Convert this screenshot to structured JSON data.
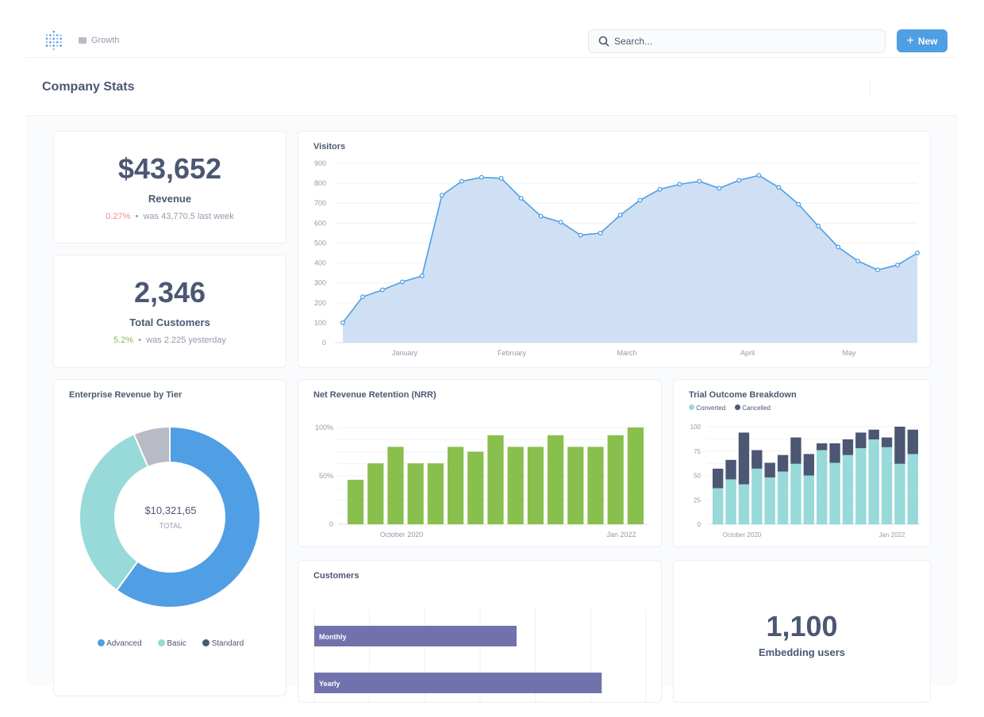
{
  "header": {
    "breadcrumb": "Growth",
    "search_placeholder": "Search...",
    "new_label": "New",
    "page_title": "Company Stats"
  },
  "revenue": {
    "value": "$43,652",
    "label": "Revenue",
    "change": "0.27%",
    "comparison": "was 43,770.5 last week",
    "change_color": "#ef8c8c"
  },
  "customers_total": {
    "value": "2,346",
    "label": "Total Customers",
    "change": "5.2%",
    "comparison": "was 2.225 yesterday",
    "change_color": "#84bb4c"
  },
  "embedding": {
    "value": "1,100",
    "label": "Embedding users"
  },
  "colors": {
    "accent": "#509ee3",
    "green": "#88bf4d",
    "teal": "#98d9d9",
    "navy": "#4c5773",
    "purple": "#7172ad",
    "gray": "#b8bbc3"
  },
  "chart_data": [
    {
      "type": "area",
      "title": "Visitors",
      "ylim": [
        0,
        900
      ],
      "yticks": [
        "0",
        "100",
        "200",
        "300",
        "400",
        "500",
        "600",
        "700",
        "800",
        "900"
      ],
      "xticks": [
        "January",
        "February",
        "March",
        "April",
        "May"
      ],
      "values": [
        100,
        230,
        265,
        305,
        335,
        740,
        810,
        830,
        825,
        725,
        635,
        605,
        540,
        550,
        640,
        715,
        770,
        795,
        810,
        775,
        815,
        840,
        780,
        695,
        585,
        480,
        410,
        365,
        390,
        450
      ]
    },
    {
      "type": "bar",
      "title": "Net Revenue Retention (NRR)",
      "ylim": [
        0,
        100
      ],
      "yticks": [
        "0",
        "50%",
        "100%"
      ],
      "xticks": [
        "October 2020",
        "Jan 2022"
      ],
      "values": [
        46,
        63,
        80,
        63,
        63,
        80,
        75,
        92,
        80,
        80,
        92,
        80,
        80,
        92,
        100
      ]
    },
    {
      "type": "bar",
      "stacked": true,
      "title": "Trial Outcome Breakdown",
      "ylim": [
        0,
        100
      ],
      "yticks": [
        "0",
        "25",
        "50",
        "75",
        "100"
      ],
      "xticks": [
        "October 2020",
        "Jan 2022"
      ],
      "legend": "top-left",
      "series": [
        {
          "name": "Converted",
          "values": [
            37,
            46,
            41,
            57,
            48,
            54,
            62,
            50,
            76,
            63,
            71,
            78,
            87,
            79,
            62,
            72
          ]
        },
        {
          "name": "Cancelled",
          "values": [
            20,
            20,
            53,
            19,
            15,
            17,
            27,
            22,
            7,
            20,
            16,
            16,
            10,
            10,
            38,
            25
          ]
        }
      ]
    },
    {
      "type": "pie",
      "donut": true,
      "title": "Enterprise Revenue by Tier",
      "center_value": "$10,321,65",
      "center_label": "TOTAL",
      "slices": [
        {
          "name": "Advanced",
          "value": 60
        },
        {
          "name": "Basic",
          "value": 33.5
        },
        {
          "name": "Standard",
          "value": 6.5
        }
      ]
    },
    {
      "type": "bar",
      "orientation": "horizontal",
      "title": "Customers",
      "xlim": [
        0,
        6
      ],
      "categories": [
        "Monthly",
        "Yearly"
      ],
      "values": [
        3.66,
        5.2
      ]
    }
  ]
}
